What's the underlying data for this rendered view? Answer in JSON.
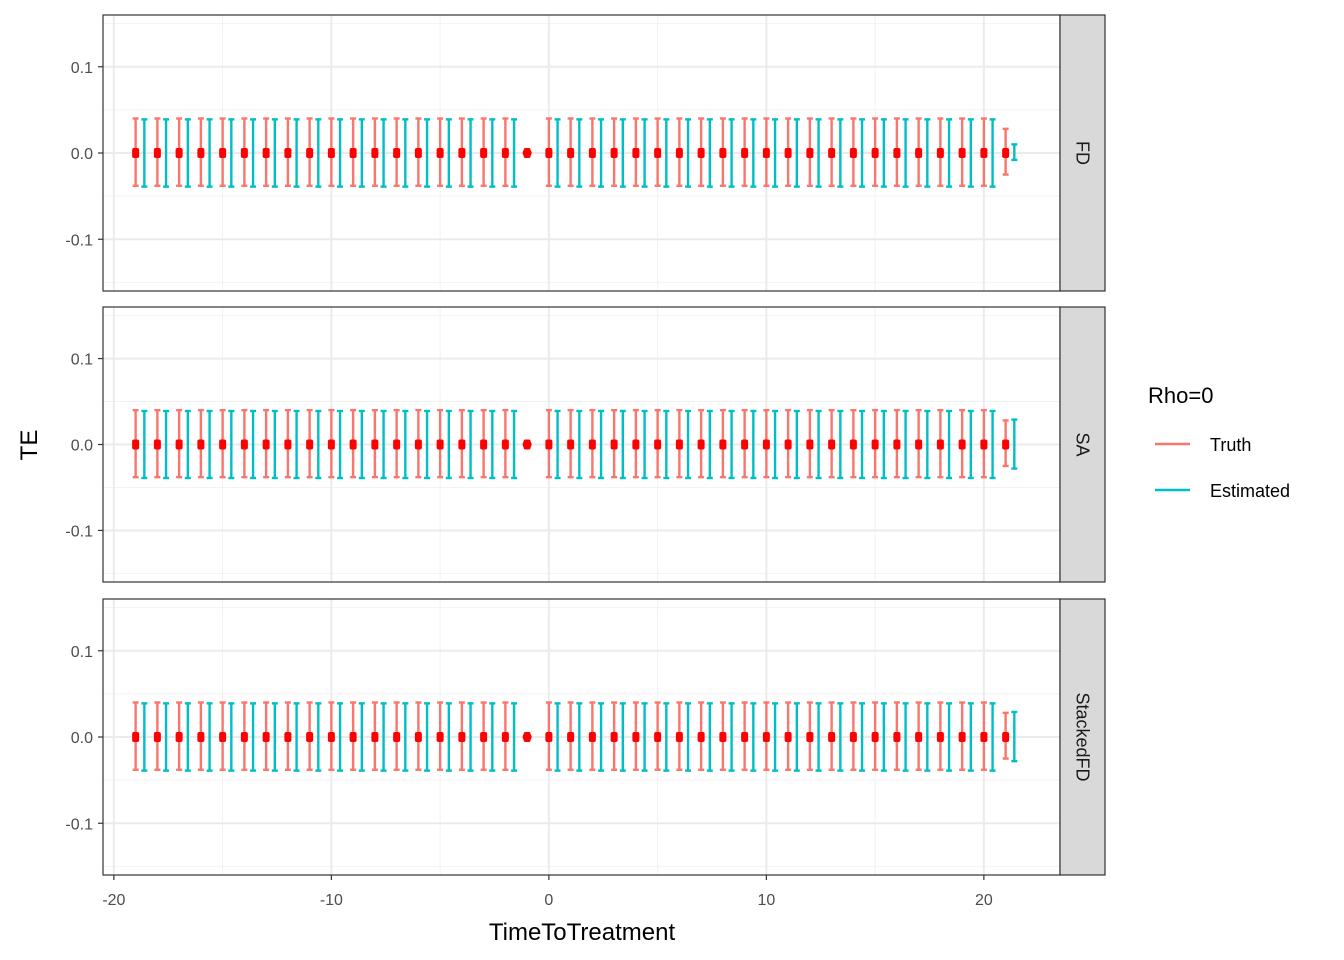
{
  "chart_data": {
    "type": "errorbar",
    "xlabel": "TimeToTreatment",
    "ylabel": "TE",
    "xlim": [
      -20.5,
      23.5
    ],
    "ylim": [
      -0.16,
      0.16
    ],
    "x_ticks": [
      -20,
      -10,
      0,
      10,
      20
    ],
    "x_tick_labels": [
      "-20",
      "-10",
      "0",
      "10",
      "20"
    ],
    "y_ticks": [
      0.1,
      0.0,
      -0.1
    ],
    "y_tick_labels": [
      "0.1",
      "0.0",
      "-0.1"
    ],
    "grid": true,
    "legend": {
      "title": "Rho=0",
      "position": "right",
      "entries": [
        "Truth",
        "Estimated"
      ]
    },
    "colors": {
      "Truth": "#F8766D",
      "Estimated": "#00BFC4",
      "point": "#FF0000",
      "panel_border": "#333333",
      "grid_major": "#EBEBEB",
      "strip_bg": "#D9D9D9"
    },
    "facets": [
      {
        "label": "FD",
        "truth": {
          "x_start": -19,
          "x_end": 21,
          "skip": [
            -1
          ],
          "lower": -0.038,
          "upper": 0.04,
          "last_lower": -0.025,
          "last_upper": 0.028
        },
        "estimated": {
          "x_start": -18.6,
          "x_end": 21.4,
          "skip": [
            -0.6
          ],
          "lower": -0.039,
          "upper": 0.039,
          "last_lower": -0.008,
          "last_upper": 0.01
        },
        "points": {
          "x_start": -19,
          "x_end": 21,
          "value": 0.0
        }
      },
      {
        "label": "SA",
        "truth": {
          "x_start": -19,
          "x_end": 21,
          "skip": [
            -1
          ],
          "lower": -0.038,
          "upper": 0.04,
          "last_lower": -0.025,
          "last_upper": 0.028
        },
        "estimated": {
          "x_start": -18.6,
          "x_end": 21.4,
          "skip": [
            -0.6
          ],
          "lower": -0.039,
          "upper": 0.039,
          "last_lower": -0.028,
          "last_upper": 0.029
        },
        "points": {
          "x_start": -19,
          "x_end": 21,
          "value": 0.0
        }
      },
      {
        "label": "StackedFD",
        "truth": {
          "x_start": -19,
          "x_end": 21,
          "skip": [
            -1
          ],
          "lower": -0.038,
          "upper": 0.04,
          "last_lower": -0.025,
          "last_upper": 0.028
        },
        "estimated": {
          "x_start": -18.6,
          "x_end": 21.4,
          "skip": [
            -0.6
          ],
          "lower": -0.039,
          "upper": 0.039,
          "last_lower": -0.028,
          "last_upper": 0.029
        },
        "points": {
          "x_start": -19,
          "x_end": 21,
          "value": 0.0
        }
      }
    ]
  }
}
